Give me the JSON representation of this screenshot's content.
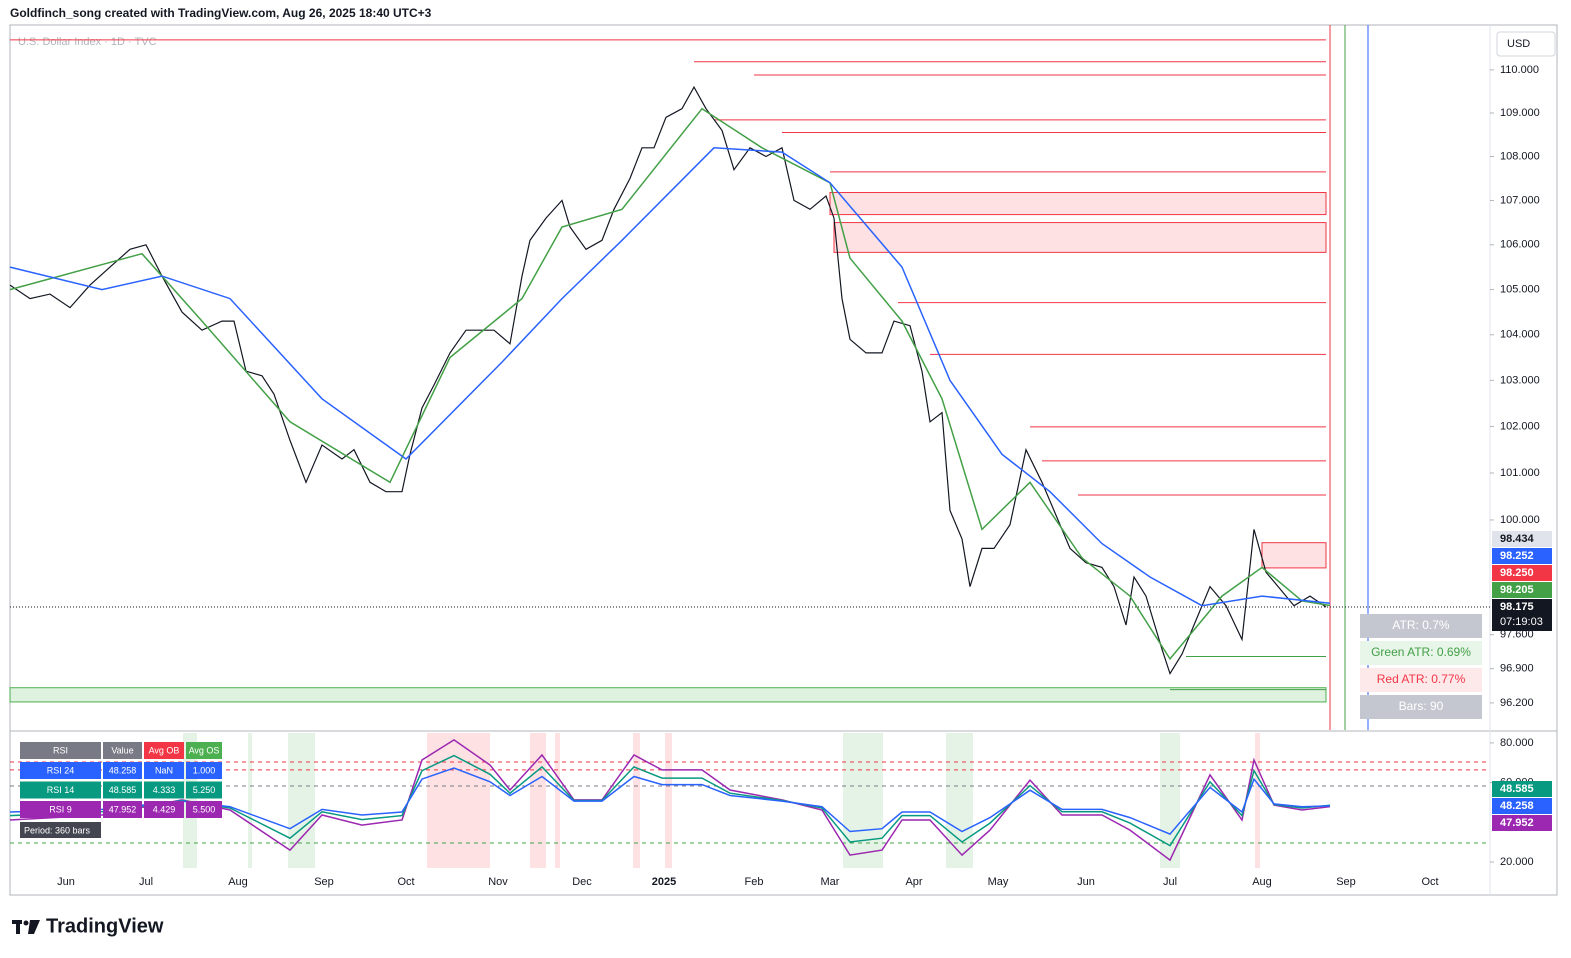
{
  "header": "Goldfinch_song created with TradingView.com, Aug 26, 2025 18:40 UTC+3",
  "brand": "TradingView",
  "chart_data": [
    {
      "type": "line",
      "title": "U.S. Dollar Index · 1D · TVC",
      "currency": "USD",
      "log_scale": true,
      "xlim": [
        0,
        370
      ],
      "ylim": [
        95.65,
        111.05
      ],
      "xticks": [
        {
          "value": 14,
          "label": "Jun"
        },
        {
          "value": 34,
          "label": "Jul"
        },
        {
          "value": 57,
          "label": "Aug"
        },
        {
          "value": 78.5,
          "label": "Sep"
        },
        {
          "value": 99,
          "label": "Oct"
        },
        {
          "value": 122,
          "label": "Nov"
        },
        {
          "value": 143,
          "label": "Dec"
        },
        {
          "value": 163.5,
          "label": "2025"
        },
        {
          "value": 186,
          "label": "Feb"
        },
        {
          "value": 205,
          "label": "Mar"
        },
        {
          "value": 226,
          "label": "Apr"
        },
        {
          "value": 247,
          "label": "May"
        },
        {
          "value": 269,
          "label": "Jun"
        },
        {
          "value": 290,
          "label": "Jul"
        },
        {
          "value": 313,
          "label": "Aug"
        },
        {
          "value": 334,
          "label": "Sep"
        },
        {
          "value": 355,
          "label": "Oct"
        }
      ],
      "yticks": [
        {
          "value": 110,
          "label": "110.000"
        },
        {
          "value": 109,
          "label": "109.000"
        },
        {
          "value": 108,
          "label": "108.000"
        },
        {
          "value": 107,
          "label": "107.000"
        },
        {
          "value": 106,
          "label": "106.000"
        },
        {
          "value": 105,
          "label": "105.000"
        },
        {
          "value": 104,
          "label": "104.000"
        },
        {
          "value": 103,
          "label": "103.000"
        },
        {
          "value": 102,
          "label": "102.000"
        },
        {
          "value": 101,
          "label": "101.000"
        },
        {
          "value": 100,
          "label": "100.000"
        },
        {
          "value": 97.6,
          "label": "97.600"
        },
        {
          "value": 96.9,
          "label": "96.900"
        },
        {
          "value": 96.2,
          "label": "96.200"
        }
      ],
      "series": [
        {
          "color": "#131722",
          "x": [
            0,
            5,
            10,
            15,
            20,
            25,
            30,
            34,
            38,
            43,
            48,
            53,
            56,
            59,
            63,
            66,
            70,
            74,
            78,
            83,
            86,
            90,
            94,
            98,
            100,
            103,
            106,
            110,
            114,
            118,
            121,
            125,
            128,
            130,
            134,
            138,
            140,
            144,
            148,
            151,
            155,
            158,
            161,
            164,
            168,
            171,
            174,
            178,
            181,
            185,
            189,
            193,
            196,
            200,
            204,
            206,
            208,
            210,
            214,
            218,
            221,
            225,
            228,
            230,
            233,
            235,
            238,
            240,
            243,
            246,
            250,
            254,
            258,
            261,
            265,
            269,
            273,
            276,
            279,
            281,
            284,
            288,
            290,
            293,
            296,
            300,
            304,
            308,
            311,
            314,
            318,
            321,
            325,
            329
          ],
          "values": [
            105.1,
            104.8,
            104.9,
            104.6,
            105.1,
            105.5,
            105.9,
            106.0,
            105.3,
            104.5,
            104.1,
            104.3,
            104.3,
            103.2,
            103.1,
            102.7,
            101.7,
            100.8,
            101.6,
            101.3,
            101.5,
            100.8,
            100.6,
            100.6,
            101.4,
            102.4,
            102.9,
            103.6,
            104.1,
            104.1,
            104.1,
            103.8,
            105.3,
            106.1,
            106.6,
            107.0,
            106.4,
            105.9,
            106.1,
            106.8,
            107.5,
            108.2,
            108.2,
            108.9,
            109.1,
            109.6,
            109.1,
            108.6,
            107.7,
            108.2,
            108.0,
            108.2,
            107.0,
            106.8,
            107.1,
            106.6,
            104.8,
            103.9,
            103.6,
            103.6,
            104.3,
            104.2,
            103.2,
            102.1,
            102.3,
            100.2,
            99.6,
            98.6,
            99.4,
            99.4,
            99.9,
            101.5,
            100.8,
            100.2,
            99.4,
            99.1,
            99.0,
            98.6,
            97.8,
            98.8,
            98.4,
            97.3,
            96.8,
            97.2,
            97.8,
            98.6,
            98.2,
            97.5,
            99.8,
            98.9,
            98.5,
            98.2,
            98.4,
            98.175
          ]
        },
        {
          "color": "#43a047",
          "x": [
            0,
            33,
            48,
            70,
            95,
            110,
            128,
            138,
            153,
            173,
            188,
            205,
            210,
            223,
            233,
            243,
            255,
            268,
            280,
            290,
            303,
            313,
            323,
            330
          ],
          "values": [
            105.0,
            105.8,
            104.3,
            102.1,
            100.8,
            103.5,
            104.8,
            106.4,
            106.8,
            109.1,
            108.2,
            107.4,
            105.7,
            104.3,
            102.6,
            99.8,
            100.8,
            99.2,
            98.4,
            97.1,
            98.4,
            99.0,
            98.3,
            98.205
          ]
        },
        {
          "color": "#2962ff",
          "x": [
            0,
            23,
            38,
            55,
            78,
            99,
            123,
            138,
            153,
            176,
            193,
            205,
            223,
            235,
            248,
            260,
            273,
            285,
            298,
            313,
            330
          ],
          "values": [
            105.5,
            105.0,
            105.3,
            104.8,
            102.6,
            101.3,
            103.4,
            104.8,
            106.1,
            108.2,
            108.1,
            107.4,
            105.5,
            103.0,
            101.4,
            100.6,
            99.5,
            98.8,
            98.2,
            98.4,
            98.252
          ]
        }
      ],
      "resistance_levels": [
        {
          "value": 110.7,
          "start": 0
        },
        {
          "value": 110.19,
          "start": 171
        },
        {
          "value": 109.88,
          "start": 186
        },
        {
          "value": 108.84,
          "start": 176
        },
        {
          "value": 108.55,
          "start": 193
        },
        {
          "value": 107.65,
          "start": 205
        },
        {
          "value": 104.71,
          "start": 222
        },
        {
          "value": 103.57,
          "start": 230
        },
        {
          "value": 101.99,
          "start": 255
        },
        {
          "value": 101.26,
          "start": 258
        },
        {
          "value": 100.53,
          "start": 267
        }
      ],
      "resistance_zones": [
        {
          "top": 107.18,
          "bottom": 106.68,
          "start": 205
        },
        {
          "top": 106.5,
          "bottom": 105.83,
          "start": 206
        },
        {
          "top": 99.52,
          "bottom": 98.99,
          "start": 313
        }
      ],
      "support_levels": [
        {
          "value": 97.15,
          "start": 294
        },
        {
          "value": 96.47,
          "start": 290
        }
      ],
      "support_zone": {
        "top": 96.51,
        "bottom": 96.22,
        "start": 0
      },
      "price_tags": [
        {
          "value": 98.434,
          "color": "#e0e3eb",
          "text_color": "#131722"
        },
        {
          "value": 98.25,
          "label": "98.250",
          "color": "#f23645",
          "text_color": "#ffffff"
        }
      ],
      "countdown": "07:19:03",
      "atr_labels": [
        "ATR: 0.7%",
        "Green ATR: 0.69%",
        "Red ATR: 0.77%",
        "Bars: 90"
      ]
    },
    {
      "type": "line",
      "xlim": [
        0,
        370
      ],
      "ylim": [
        17,
        85
      ],
      "yticks": [
        {
          "value": 80,
          "label": "80.000"
        },
        {
          "value": 60,
          "label": "60.000"
        },
        {
          "value": 20,
          "label": "20.000"
        }
      ],
      "levels": [
        {
          "value": 70.4,
          "color": "#f23645"
        },
        {
          "value": 66.4,
          "color": "#f23645"
        },
        {
          "value": 58.3,
          "color": "#787b86"
        },
        {
          "value": 29.6,
          "color": "#43a047"
        }
      ],
      "x": [
        0,
        23,
        43,
        55,
        70,
        78,
        88,
        98,
        103,
        111,
        120,
        125,
        133,
        141,
        148,
        156,
        163,
        173,
        180,
        193,
        203,
        210,
        218,
        223,
        230,
        238,
        245,
        255,
        263,
        273,
        280,
        290,
        300,
        308,
        311,
        316,
        323,
        330
      ],
      "series": [
        {
          "name": "RSI 24",
          "color": "#2962ff",
          "values": [
            45.2,
            46.5,
            50.7,
            47.9,
            36.8,
            46.5,
            43.7,
            45.2,
            61.8,
            67.3,
            60.4,
            53.5,
            63.1,
            50.7,
            50.7,
            63.1,
            59.0,
            59.0,
            53.5,
            50.7,
            47.9,
            35.4,
            36.8,
            45.2,
            45.2,
            35.4,
            42.4,
            56.2,
            46.5,
            46.5,
            42.4,
            34.1,
            57.6,
            45.2,
            61.8,
            49.3,
            47.9,
            48.258
          ]
        },
        {
          "name": "RSI 14",
          "color": "#089981",
          "values": [
            43.4,
            45.3,
            51.0,
            47.2,
            32.0,
            45.3,
            41.4,
            43.4,
            66.0,
            73.6,
            64.2,
            54.7,
            67.9,
            51.0,
            51.0,
            67.9,
            62.3,
            62.3,
            54.7,
            51.0,
            47.2,
            30.1,
            32.0,
            43.4,
            43.4,
            30.1,
            39.6,
            58.5,
            45.3,
            45.3,
            39.6,
            28.3,
            60.4,
            43.4,
            66.0,
            49.0,
            47.2,
            48.585
          ]
        },
        {
          "name": "RSI 9",
          "color": "#9c27b0",
          "values": [
            41.2,
            43.7,
            51.3,
            46.2,
            26.0,
            43.7,
            38.6,
            41.2,
            71.4,
            81.5,
            68.9,
            56.3,
            73.9,
            51.3,
            51.3,
            73.9,
            66.4,
            66.4,
            56.3,
            51.3,
            46.2,
            23.5,
            26.0,
            41.2,
            41.2,
            23.5,
            36.1,
            61.3,
            43.7,
            43.7,
            36.1,
            21.0,
            63.9,
            41.2,
            71.4,
            48.7,
            46.2,
            47.952
          ]
        }
      ],
      "table": {
        "header": [
          "RSI",
          "Value",
          "Avg OB",
          "Avg OS"
        ],
        "rows": [
          {
            "avg_ob": "NaN",
            "avg_os": "1.000"
          },
          {
            "avg_ob": "4.333",
            "avg_os": "5.250"
          },
          {
            "avg_ob": "4.429",
            "avg_os": "5.500"
          }
        ],
        "footer": "Period: 360 bars"
      }
    }
  ]
}
